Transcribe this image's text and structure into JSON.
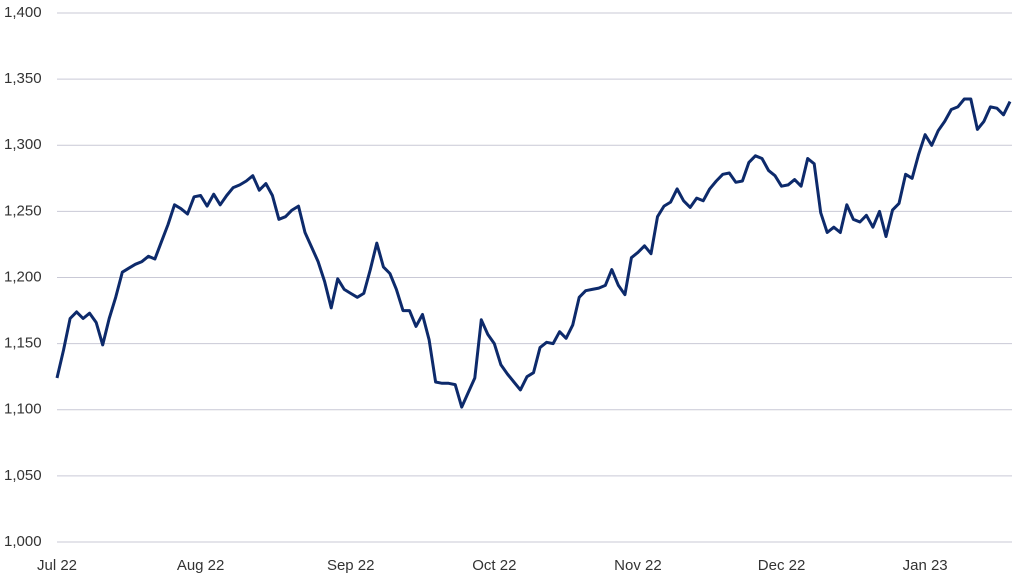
{
  "chart_data": {
    "type": "line",
    "color": "#0d2a6b",
    "grid": true,
    "ylim": [
      1000,
      1400
    ],
    "yticks": [
      {
        "value": 1000,
        "label": "1,000"
      },
      {
        "value": 1050,
        "label": "1,050"
      },
      {
        "value": 1100,
        "label": "1,100"
      },
      {
        "value": 1150,
        "label": "1,150"
      },
      {
        "value": 1200,
        "label": "1,200"
      },
      {
        "value": 1250,
        "label": "1,250"
      },
      {
        "value": 1300,
        "label": "1,300"
      },
      {
        "value": 1350,
        "label": "1,350"
      },
      {
        "value": 1400,
        "label": "1,400"
      }
    ],
    "categories": [
      "Jul 22",
      null,
      null,
      null,
      null,
      null,
      null,
      null,
      null,
      null,
      null,
      null,
      null,
      null,
      null,
      null,
      null,
      null,
      null,
      null,
      null,
      null,
      "Aug 22",
      null,
      null,
      null,
      null,
      null,
      null,
      null,
      null,
      null,
      null,
      null,
      null,
      null,
      null,
      null,
      null,
      null,
      null,
      null,
      null,
      null,
      null,
      "Sep 22",
      null,
      null,
      null,
      null,
      null,
      null,
      null,
      null,
      null,
      null,
      null,
      null,
      null,
      null,
      null,
      null,
      null,
      null,
      null,
      null,
      null,
      "Oct 22",
      null,
      null,
      null,
      null,
      null,
      null,
      null,
      null,
      null,
      null,
      null,
      null,
      null,
      null,
      null,
      null,
      null,
      null,
      null,
      null,
      null,
      "Nov 22",
      null,
      null,
      null,
      null,
      null,
      null,
      null,
      null,
      null,
      null,
      null,
      null,
      null,
      null,
      null,
      null,
      null,
      null,
      null,
      null,
      null,
      "Dec 22",
      null,
      null,
      null,
      null,
      null,
      null,
      null,
      null,
      null,
      null,
      null,
      null,
      null,
      null,
      null,
      null,
      null,
      null,
      null,
      null,
      null,
      "Jan 23",
      null,
      null,
      null,
      null,
      null,
      null,
      null,
      null,
      null,
      null,
      null,
      null,
      null
    ],
    "values": [
      1124,
      1145,
      1169,
      1174,
      1169,
      1173,
      1166,
      1149,
      1169,
      1185,
      1204,
      1207,
      1210,
      1212,
      1216,
      1214,
      1227,
      1240,
      1255,
      1252,
      1248,
      1261,
      1262,
      1254,
      1263,
      1255,
      1262,
      1268,
      1270,
      1273,
      1277,
      1266,
      1271,
      1262,
      1244,
      1246,
      1251,
      1254,
      1234,
      1223,
      1212,
      1197,
      1177,
      1199,
      1191,
      1188,
      1185,
      1188,
      1206,
      1226,
      1208,
      1203,
      1191,
      1175,
      1175,
      1163,
      1172,
      1153,
      1121,
      1120,
      1120,
      1119,
      1102,
      1113,
      1124,
      1168,
      1157,
      1150,
      1134,
      1127,
      1121,
      1115,
      1125,
      1128,
      1147,
      1151,
      1150,
      1159,
      1154,
      1164,
      1185,
      1190,
      1191,
      1192,
      1194,
      1206,
      1194,
      1187,
      1215,
      1219,
      1224,
      1218,
      1246,
      1254,
      1257,
      1267,
      1258,
      1253,
      1260,
      1258,
      1267,
      1273,
      1278,
      1279,
      1272,
      1273,
      1287,
      1292,
      1290,
      1281,
      1277,
      1269,
      1270,
      1274,
      1269,
      1290,
      1286,
      1249,
      1234,
      1238,
      1234,
      1255,
      1244,
      1242,
      1247,
      1238,
      1250,
      1231,
      1251,
      1256,
      1278,
      1275,
      1293,
      1308,
      1300,
      1311,
      1318,
      1327,
      1329,
      1335,
      1335,
      1312,
      1318,
      1329,
      1328,
      1323,
      1333
    ]
  }
}
